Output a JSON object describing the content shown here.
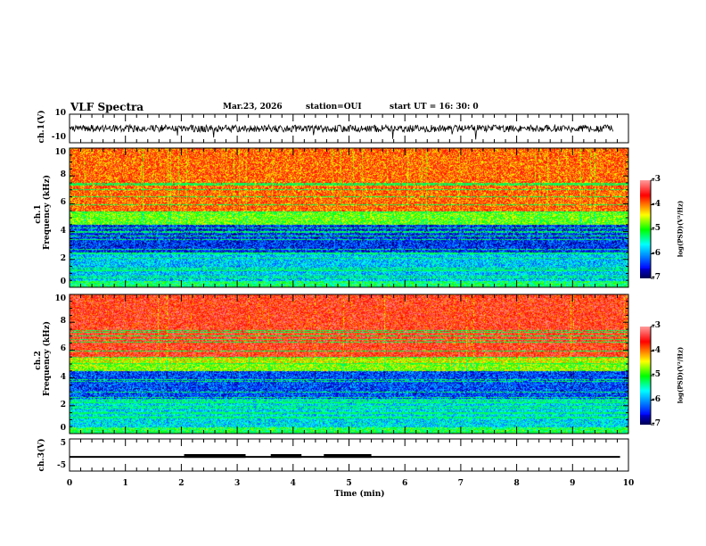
{
  "header": {
    "title": "VLF Spectra",
    "date": "Mar.23, 2026",
    "station": "station=OUI",
    "start": "start  UT =   16: 30: 0"
  },
  "chart_data": [
    {
      "type": "line",
      "name": "ch1-waveform",
      "ylabel": "ch.1(V)",
      "ylim": [
        -10,
        10
      ],
      "yticks": [
        "10",
        "-10"
      ],
      "xlim": [
        0,
        10
      ]
    },
    {
      "type": "heatmap",
      "name": "ch1-spectrogram",
      "ylabel": "ch.1\nFrequency (kHz)",
      "ylabel_top": "ch.1",
      "ylabel_bottom": "Frequency (kHz)",
      "ylim": [
        0,
        10
      ],
      "yticks": [
        "0",
        "2",
        "4",
        "6",
        "8",
        "10"
      ],
      "xlim": [
        0,
        10
      ],
      "colorbar": {
        "label": "log(PSD)(V²/Hz)",
        "range": [
          -7,
          -3
        ],
        "ticks": [
          "-3",
          "-4",
          "-5",
          "-6",
          "-7"
        ]
      }
    },
    {
      "type": "heatmap",
      "name": "ch2-spectrogram",
      "ylabel_top": "ch.2",
      "ylabel_bottom": "Frequency (kHz)",
      "ylim": [
        0,
        10
      ],
      "yticks": [
        "0",
        "2",
        "4",
        "6",
        "8",
        "10"
      ],
      "xlim": [
        0,
        10
      ],
      "colorbar": {
        "label": "log(PSD)(V²/Hz)",
        "range": [
          -7,
          -3
        ],
        "ticks": [
          "-3",
          "-4",
          "-5",
          "-6",
          "-7"
        ]
      }
    },
    {
      "type": "line",
      "name": "ch3-trace",
      "ylabel": "ch.3(V)",
      "ylim": [
        -5,
        5
      ],
      "yticks": [
        "5",
        "-5"
      ],
      "xlim": [
        0,
        10
      ],
      "baseline": -0.6,
      "high_level": 0.0,
      "high_segments": [
        [
          2.05,
          3.15
        ],
        [
          3.6,
          4.15
        ],
        [
          4.55,
          5.4
        ]
      ],
      "data_end": 9.85
    }
  ],
  "xaxis": {
    "label": "Time (min)",
    "ticks": [
      "0",
      "1",
      "2",
      "3",
      "4",
      "5",
      "6",
      "7",
      "8",
      "9",
      "10"
    ]
  }
}
